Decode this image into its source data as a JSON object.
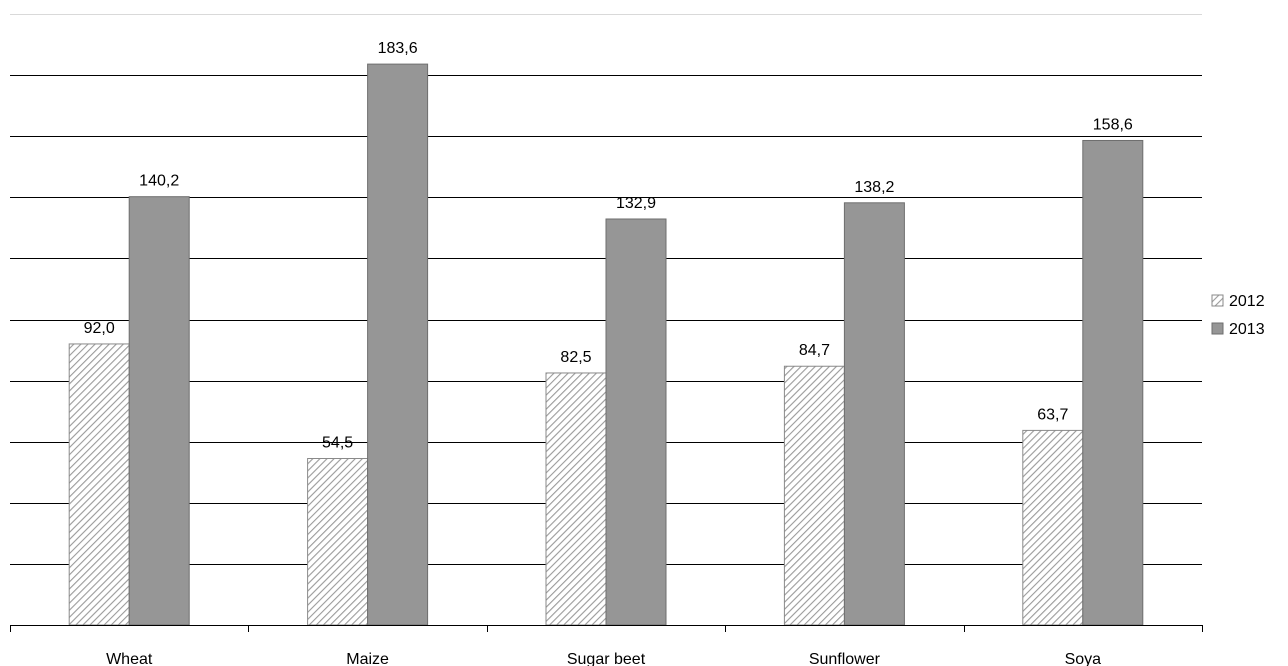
{
  "chart_data": {
    "type": "bar",
    "categories": [
      "Wheat",
      "Maize",
      "Sugar beet",
      "Sunflower",
      "Soya"
    ],
    "series": [
      {
        "name": "2012",
        "values": [
          92.0,
          54.5,
          82.5,
          84.7,
          63.7
        ],
        "value_labels": [
          "92,0",
          "54,5",
          "82,5",
          "84,7",
          "63,7"
        ],
        "color": "#d0d0d0",
        "pattern": "diagonal-hatch"
      },
      {
        "name": "2013",
        "values": [
          140.2,
          183.6,
          132.9,
          138.2,
          158.6
        ],
        "value_labels": [
          "140,2",
          "183,6",
          "132,9",
          "138,2",
          "158,6"
        ],
        "color": "#969696",
        "pattern": "solid"
      }
    ],
    "ylim": [
      0,
      200
    ],
    "grid": true,
    "legend_position": "right"
  }
}
